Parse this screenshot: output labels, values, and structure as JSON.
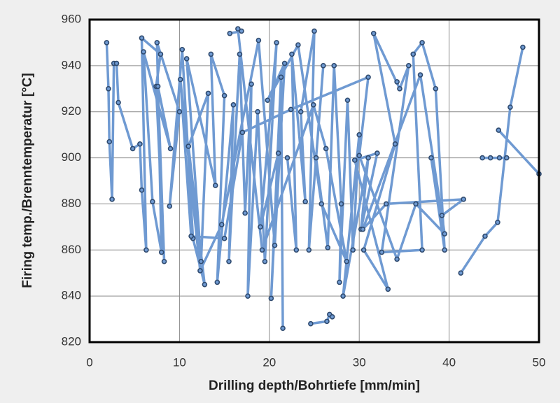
{
  "chart_data": {
    "type": "line",
    "x_label": "Drilling depth/Bohrtiefe [mm/min]",
    "y_label": "Firing temp./Brenntemperatur [°C]",
    "x": [
      1.9,
      2.1,
      2.2,
      2.5,
      2.7,
      3.0,
      3.2,
      4.8,
      5.6,
      5.8,
      6.3,
      5.8,
      7.9,
      7.4,
      8.3,
      7.6,
      9.0,
      6.0,
      7.0,
      8.0,
      7.5,
      10.0,
      8.9,
      10.3,
      11.5,
      12.8,
      11.0,
      13.2,
      12.4,
      10.8,
      14.0,
      13.5,
      15.0,
      14.2,
      16.0,
      15.5,
      16.7,
      17.3,
      18.0,
      17.6,
      18.7,
      19.5,
      20.8,
      19.0,
      21.0,
      20.2,
      21.3,
      21.5,
      null,
      24.6,
      26.4,
      26.7,
      27.0,
      null,
      22.0,
      23.0,
      22.5,
      24.0,
      23.5,
      25.0,
      24.4,
      26.0,
      25.2,
      26.5,
      27.2,
      28.0,
      27.8,
      28.7,
      29.3,
      30.0,
      28.2,
      31.0,
      30.2,
      32.0,
      29.5,
      33.2,
      30.5,
      34.0,
      31.6,
      34.5,
      35.5,
      32.5,
      37.0,
      36.0,
      37.0,
      38.5,
      39.5,
      38.0,
      39.2,
      41.6,
      33.0,
      30.4,
      36.8,
      39.5,
      36.3,
      34.2,
      30.0,
      31.0,
      22.4,
      17.0,
      15.0,
      11.3,
      10.1,
      12.3,
      14.7,
      18.8,
      20.6,
      21.7,
      19.8,
      23.2,
      25.8,
      28.6,
      26.3,
      24.9,
      19.2,
      16.5,
      16.9,
      15.6,
      null,
      41.3,
      44.0,
      45.4,
      46.8,
      48.2,
      null,
      43.7,
      44.6,
      45.6,
      46.4,
      null,
      45.5,
      50,
      null,
      34.2
    ],
    "values": [
      950,
      930,
      907,
      882,
      941,
      941,
      924,
      904,
      906,
      886,
      860,
      952,
      945,
      931,
      855,
      931,
      904,
      946,
      881,
      859,
      950,
      920,
      879,
      947,
      865,
      845,
      905,
      928,
      855,
      943,
      888,
      945,
      927,
      846,
      923,
      855,
      945,
      876,
      932,
      840,
      920,
      855,
      950,
      870,
      902,
      839,
      935,
      826,
      null,
      828,
      829,
      832,
      831,
      null,
      900,
      860,
      945,
      881,
      920,
      955,
      860,
      940,
      900,
      861,
      940,
      880,
      846,
      925,
      860,
      910,
      840,
      900,
      869,
      902,
      899,
      843,
      860,
      906,
      954,
      930,
      940,
      859,
      860,
      945,
      950,
      930,
      860,
      900,
      875,
      882,
      880,
      869,
      936,
      867,
      880,
      856,
      901,
      935,
      921,
      911,
      865,
      866,
      934,
      851,
      871,
      951,
      862,
      941,
      925,
      949,
      880,
      855,
      904,
      923,
      860,
      956,
      955,
      954,
      null,
      850,
      866,
      872,
      922,
      948,
      null,
      900,
      900,
      900,
      900,
      null,
      912,
      893,
      null,
      933
    ],
    "color": "#6f9ad2",
    "marker_color": "#2f4a6e",
    "xlim": [
      0,
      50
    ],
    "xticks": [
      0,
      10,
      20,
      30,
      40,
      50
    ],
    "ylim": [
      820,
      960
    ],
    "yticks": [
      820,
      840,
      860,
      880,
      900,
      920,
      940,
      960
    ],
    "grid": true
  }
}
